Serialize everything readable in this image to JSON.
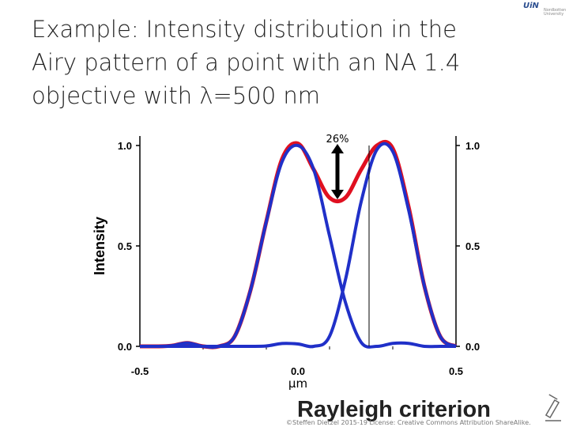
{
  "title_lines": [
    "Example: Intensity distribution in the",
    "Airy pattern of a point with an NA 1.4",
    "objective with λ=500 nm"
  ],
  "logo": {
    "mark": "UiN",
    "sub": "Nord­botten\nUniversity"
  },
  "footer": {
    "heading": "Rayleigh criterion",
    "credit": "©Steffen Dietzel 2015-19 License: Creative Commons Attribution ShareAlike."
  },
  "chart_data": {
    "type": "line",
    "title": "",
    "xlabel": "µm",
    "ylabel": "Intensity",
    "xlim": [
      -0.5,
      0.5
    ],
    "ylim": [
      0.0,
      1.0
    ],
    "xticks": [
      "-0.5",
      "0.0",
      "0.5"
    ],
    "yticks_left": [
      "0.0",
      "0.5",
      "1.0"
    ],
    "yticks_right": [
      "0.0",
      "0.5",
      "1.0"
    ],
    "annotation": {
      "text": "26%",
      "dip_value": 0.74
    },
    "series": [
      {
        "color": "#2030c8",
        "x": [
          -0.5,
          -0.45,
          -0.4,
          -0.35,
          -0.3,
          -0.25,
          -0.2,
          -0.15,
          -0.1,
          -0.05,
          0.0,
          0.05,
          0.1,
          0.15,
          0.2,
          0.25,
          0.3,
          0.35,
          0.4,
          0.45,
          0.5
        ],
        "y": [
          0.0,
          0.0,
          0.003,
          0.017,
          0.0,
          0.0,
          0.05,
          0.28,
          0.62,
          0.92,
          1.0,
          0.88,
          0.55,
          0.22,
          0.02,
          0.0,
          0.015,
          0.015,
          0.0,
          0.0,
          0.0
        ]
      },
      {
        "color": "#2030c8",
        "x": [
          -0.5,
          -0.45,
          -0.4,
          -0.35,
          -0.3,
          -0.25,
          -0.2,
          -0.15,
          -0.1,
          -0.05,
          0.0,
          0.05,
          0.1,
          0.15,
          0.2,
          0.25,
          0.3,
          0.35,
          0.4,
          0.45,
          0.5
        ],
        "y": [
          0.0,
          0.0,
          0.0,
          0.0,
          0.0,
          0.0,
          0.0,
          0.0,
          0.002,
          0.014,
          0.012,
          0.0,
          0.05,
          0.33,
          0.72,
          0.98,
          0.97,
          0.68,
          0.3,
          0.05,
          0.0
        ]
      },
      {
        "color": "#e01020",
        "x": [
          -0.5,
          -0.45,
          -0.4,
          -0.35,
          -0.3,
          -0.25,
          -0.2,
          -0.15,
          -0.1,
          -0.05,
          0.0,
          0.05,
          0.1,
          0.15,
          0.2,
          0.25,
          0.3,
          0.35,
          0.4,
          0.45,
          0.5
        ],
        "y": [
          0.0,
          0.0,
          0.003,
          0.017,
          0.0,
          0.0,
          0.05,
          0.28,
          0.622,
          0.934,
          1.01,
          0.88,
          0.74,
          0.74,
          0.88,
          1.0,
          0.985,
          0.695,
          0.3,
          0.05,
          0.0
        ]
      }
    ]
  }
}
